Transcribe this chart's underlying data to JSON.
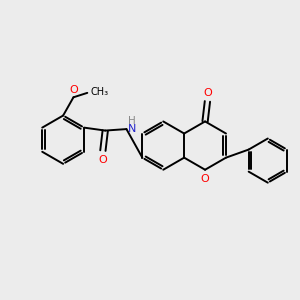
{
  "bg_color": "#ececec",
  "bond_color": "#000000",
  "bond_width": 1.4,
  "atom_colors": {
    "O": "#ff0000",
    "N": "#2222cc",
    "C": "#000000"
  },
  "font_size": 8.0,
  "fig_size": [
    3.0,
    3.0
  ],
  "dpi": 100
}
